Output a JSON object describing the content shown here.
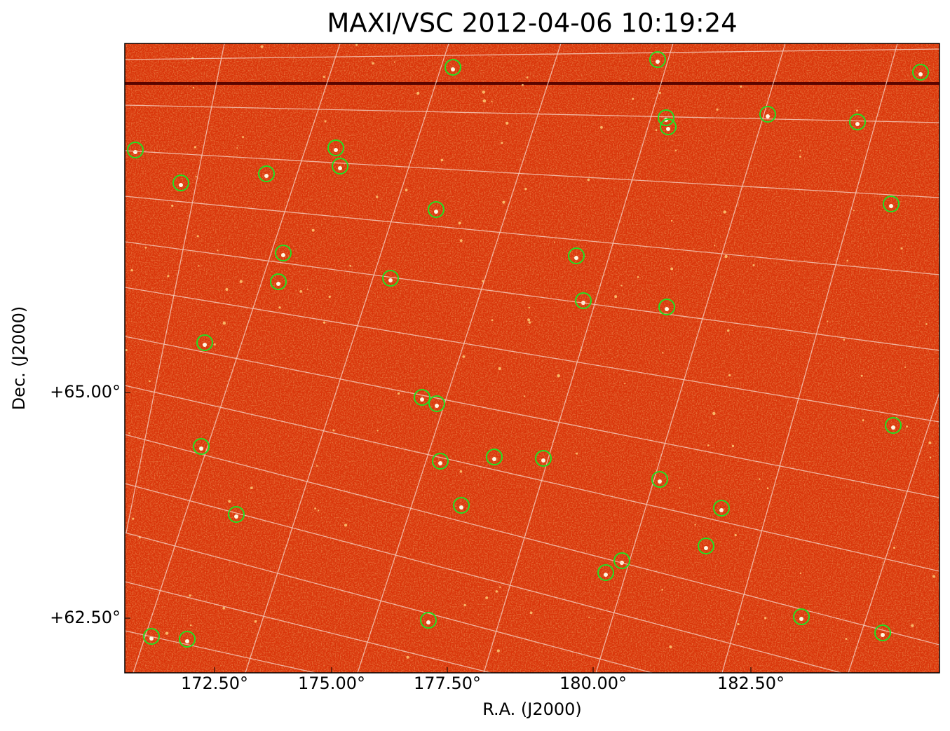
{
  "title": "MAXI/VSC 2012-04-06 10:19:24",
  "x_axis": {
    "label": "R.A. (J2000)",
    "ticks": [
      "172.50°",
      "175.00°",
      "177.50°",
      "180.00°",
      "182.50°"
    ]
  },
  "y_axis": {
    "label": "Dec. (J2000)",
    "ticks": [
      "+65.00°",
      "+62.50°"
    ]
  }
}
